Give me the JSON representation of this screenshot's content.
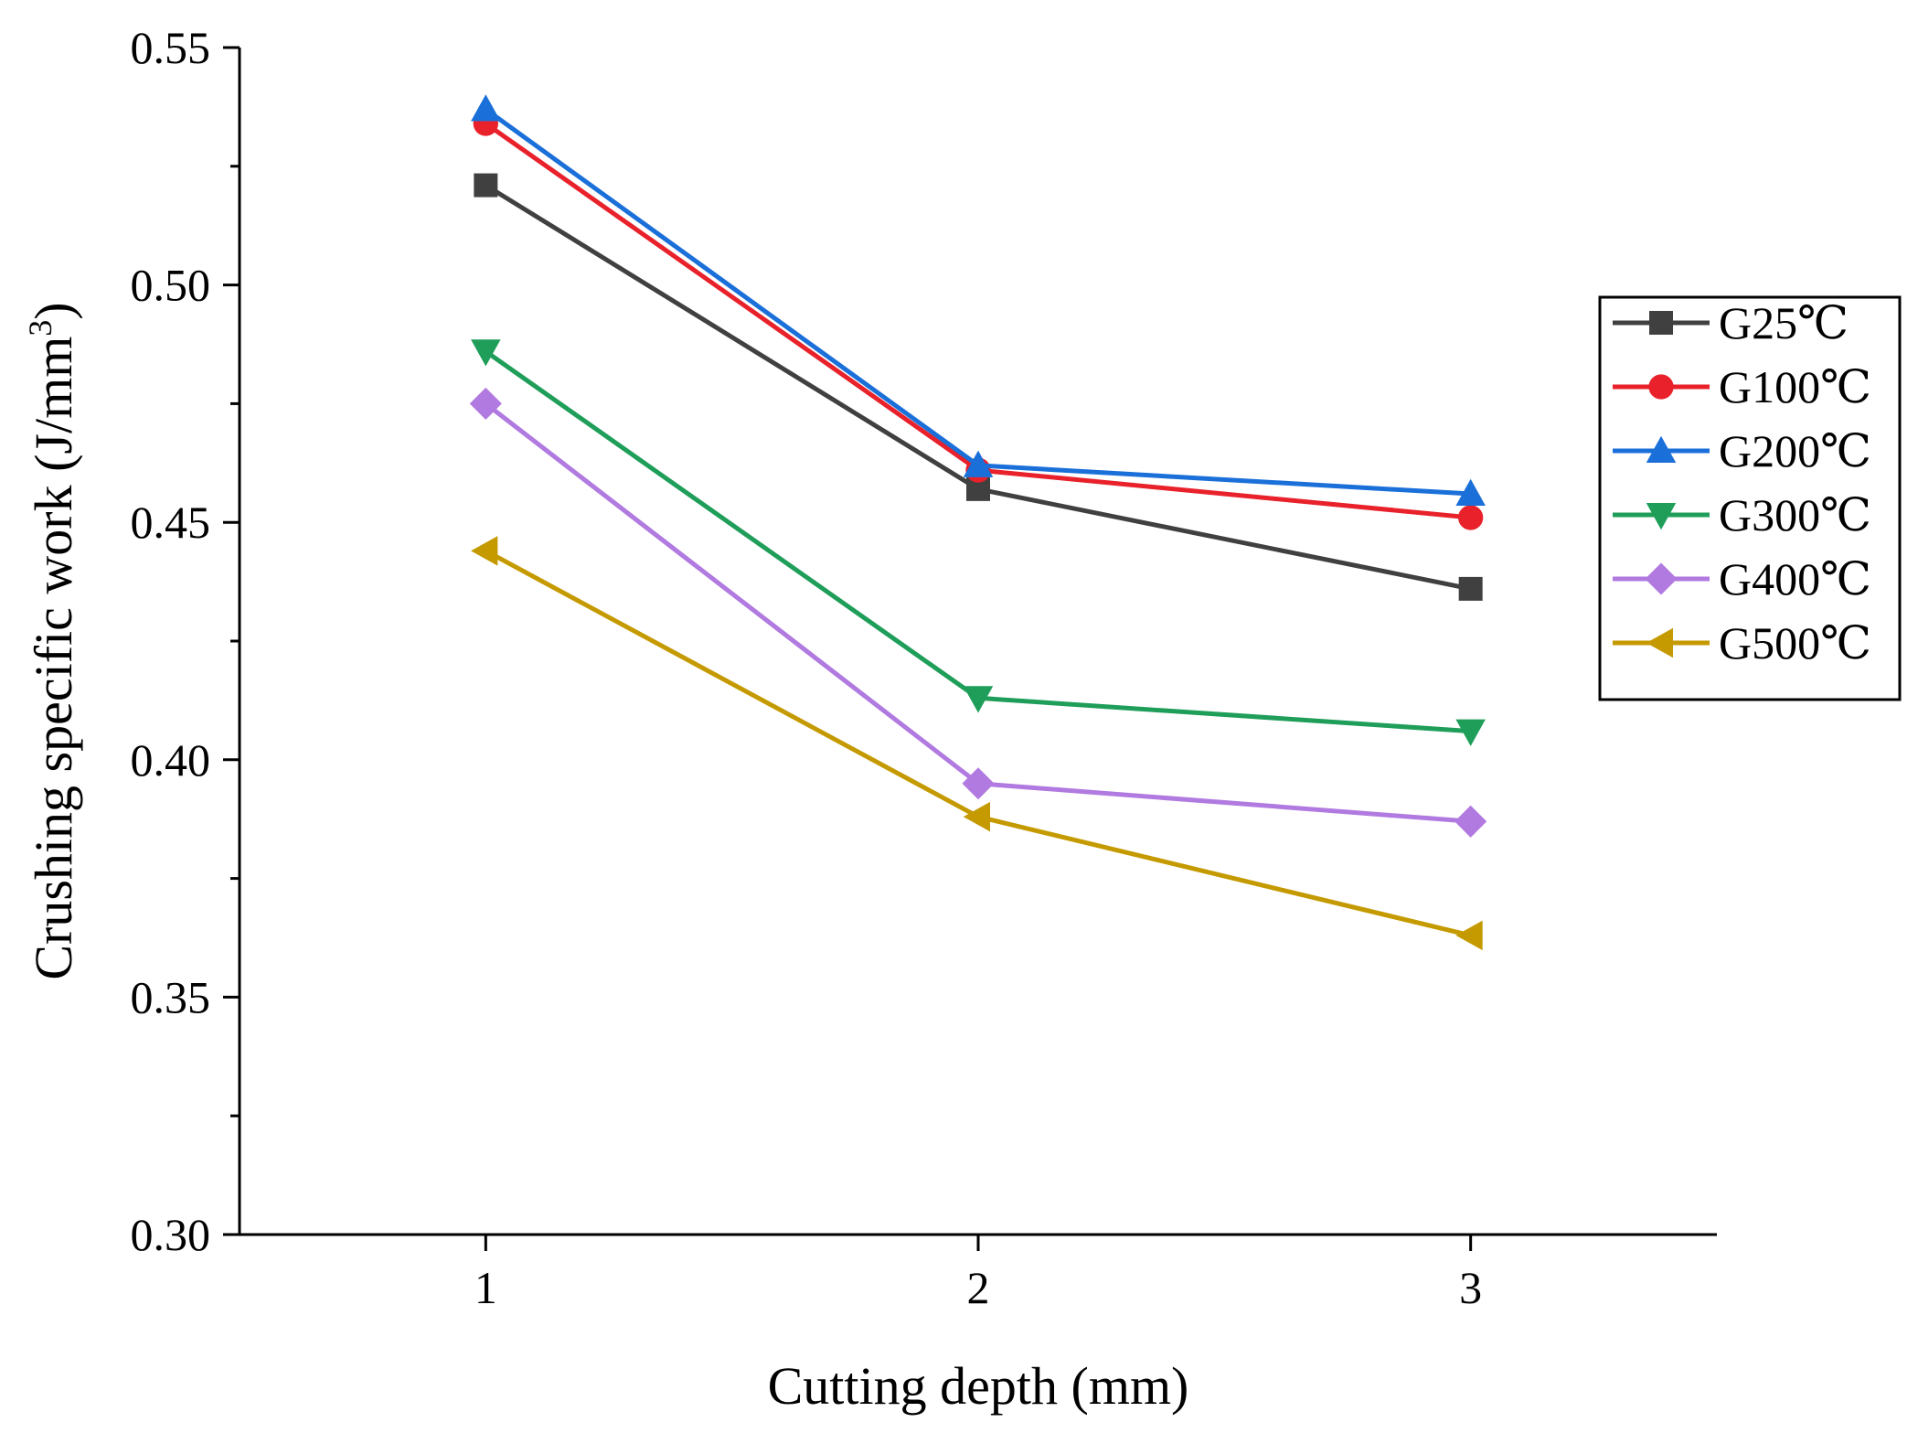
{
  "chart_data": {
    "type": "line",
    "title": "",
    "xlabel": "Cutting depth (mm)",
    "ylabel_main": "Crushing specific work (J/mm",
    "ylabel_sup": "3",
    "ylabel_close": ")",
    "x": [
      1,
      2,
      3
    ],
    "x_tick_labels": [
      "1",
      "2",
      "3"
    ],
    "xlim": [
      0.5,
      3.5
    ],
    "ylim": [
      0.3,
      0.55
    ],
    "y_ticks": [
      0.3,
      0.35,
      0.4,
      0.45,
      0.5,
      0.55
    ],
    "y_tick_labels": [
      "0.30",
      "0.35",
      "0.40",
      "0.45",
      "0.50",
      "0.55"
    ],
    "grid": false,
    "legend_position": "right",
    "series": [
      {
        "name": "G25℃",
        "color": "#404040",
        "marker": "square",
        "values": [
          0.521,
          0.457,
          0.436
        ]
      },
      {
        "name": "G100℃",
        "color": "#e8212b",
        "marker": "circle",
        "values": [
          0.534,
          0.461,
          0.451
        ]
      },
      {
        "name": "G200℃",
        "color": "#1a6fd9",
        "marker": "triangle-up",
        "values": [
          0.537,
          0.462,
          0.456
        ]
      },
      {
        "name": "G300℃",
        "color": "#1f9e5a",
        "marker": "triangle-down",
        "values": [
          0.486,
          0.413,
          0.406
        ]
      },
      {
        "name": "G400℃",
        "color": "#b17ae0",
        "marker": "diamond",
        "values": [
          0.475,
          0.395,
          0.387
        ]
      },
      {
        "name": "G500℃",
        "color": "#c49a00",
        "marker": "triangle-left",
        "values": [
          0.444,
          0.388,
          0.363
        ]
      }
    ]
  }
}
